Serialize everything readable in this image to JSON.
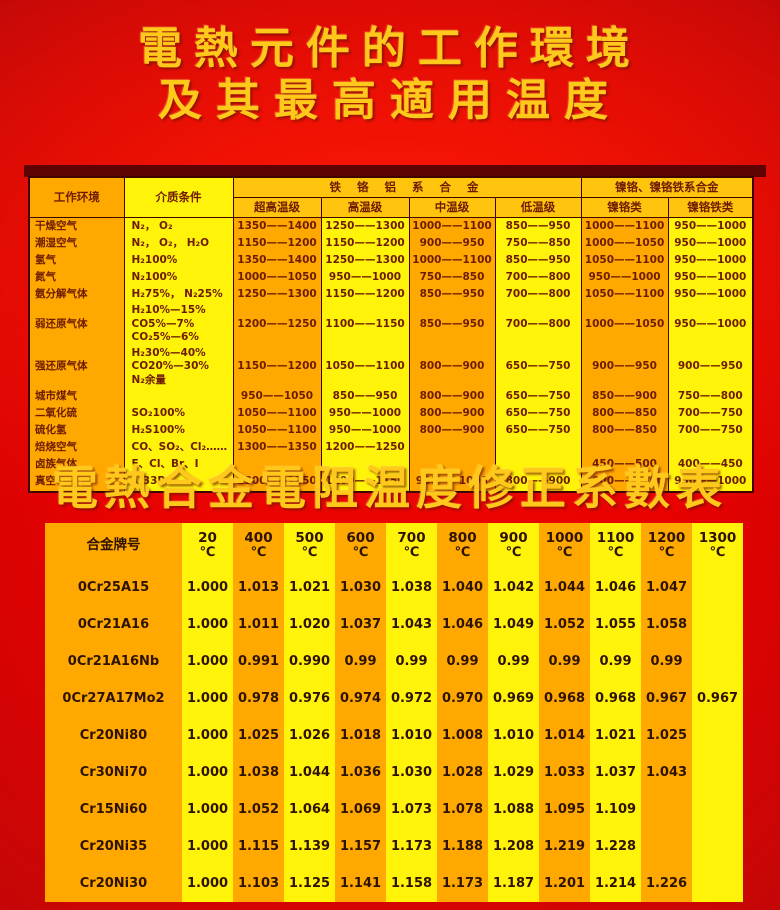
{
  "page": {
    "title_line1": "電熱元件的工作環境",
    "title_line2": "及其最高適用温度",
    "section2_title": "電熱合金電阻温度修正系數表"
  },
  "colors": {
    "background_red": "#e60000",
    "edge_maroon": "#650404",
    "title_gold": "#ffc91c",
    "cell_orange": "#ffa800",
    "cell_yellow": "#fff30a",
    "header_gold": "#ffc40d",
    "table1_text": "#6e1c00",
    "table2_text": "#2e1300",
    "border_dark": "#3f0300"
  },
  "table1": {
    "corner_headers": [
      "工作环境",
      "介质条件"
    ],
    "group_headers": [
      "铁 铬 铝 系 合 金",
      "镍铬、镍铬铁系合金"
    ],
    "sub_headers": [
      "超高温级",
      "高温级",
      "中温级",
      "低温级",
      "镍铬类",
      "镍铬铁类"
    ],
    "rows": [
      {
        "env": "干燥空气",
        "medium": "N₂， O₂",
        "values": [
          "1350——1400",
          "1250——1300",
          "1000——1100",
          "850——950",
          "1000——1100",
          "950——1000"
        ]
      },
      {
        "env": "潮湿空气",
        "medium": "N₂， O₂， H₂O",
        "values": [
          "1150——1200",
          "1150——1200",
          "900——950",
          "750——850",
          "1000——1050",
          "950——1000"
        ]
      },
      {
        "env": "氢气",
        "medium": "H₂100%",
        "values": [
          "1350——1400",
          "1250——1300",
          "1000——1100",
          "850——950",
          "1050——1100",
          "950——1000"
        ]
      },
      {
        "env": "氮气",
        "medium": "N₂100%",
        "values": [
          "1000——1050",
          "950——1000",
          "750——850",
          "700——800",
          "950——1000",
          "950——1000"
        ]
      },
      {
        "env": "氨分解气体",
        "medium": "H₂75%， N₂25%",
        "values": [
          "1250——1300",
          "1150——1200",
          "850——950",
          "700——800",
          "1050——1100",
          "950——1000"
        ]
      },
      {
        "env": "弱还原气体",
        "medium": "H₂10%—15%\nCO5%—7%\nCO₂5%—6%",
        "values": [
          "1200——1250",
          "1100——1150",
          "850——950",
          "700——800",
          "1000——1050",
          "950——1000"
        ]
      },
      {
        "env": "强还原气体",
        "medium": "H₂30%—40%\nCO20%—30%\nN₂余量",
        "values": [
          "1150——1200",
          "1050——1100",
          "800——900",
          "650——750",
          "900——950",
          "900——950"
        ]
      },
      {
        "env": "城市煤气",
        "medium": "",
        "values": [
          "950——1050",
          "850——950",
          "800——900",
          "650——750",
          "850——900",
          "750——800"
        ]
      },
      {
        "env": "二氧化硫",
        "medium": "SO₂100%",
        "values": [
          "1050——1100",
          "950——1000",
          "800——900",
          "650——750",
          "800——850",
          "700——750"
        ]
      },
      {
        "env": "硫化氢",
        "medium": "H₂S100%",
        "values": [
          "1050——1100",
          "950——1000",
          "800——900",
          "650——750",
          "800——850",
          "700——750"
        ]
      },
      {
        "env": "焙烧空气",
        "medium": "CO、SO₂、Cl₂……",
        "values": [
          "1300——1350",
          "1200——1250",
          "",
          "",
          "",
          ""
        ]
      },
      {
        "env": "卤族气体",
        "medium": "F、Cl、Br、I",
        "values": [
          "",
          "",
          "",
          "",
          "450——500",
          "400——450"
        ]
      },
      {
        "env": "真空",
        "medium": "1.33Pa",
        "values": [
          "1200——1250",
          "1100——1150",
          "900——1000",
          "800——900",
          "1000——1100",
          "950——1000"
        ]
      }
    ]
  },
  "table2": {
    "col0_header": "合金牌号",
    "temp_headers": [
      "20",
      "400",
      "500",
      "600",
      "700",
      "800",
      "900",
      "1000",
      "1100",
      "1200",
      "1300"
    ],
    "temp_unit": "℃",
    "rows": [
      {
        "name": "0Cr25A15",
        "values": [
          "1.000",
          "1.013",
          "1.021",
          "1.030",
          "1.038",
          "1.040",
          "1.042",
          "1.044",
          "1.046",
          "1.047",
          ""
        ]
      },
      {
        "name": "0Cr21A16",
        "values": [
          "1.000",
          "1.011",
          "1.020",
          "1.037",
          "1.043",
          "1.046",
          "1.049",
          "1.052",
          "1.055",
          "1.058",
          ""
        ]
      },
      {
        "name": "0Cr21A16Nb",
        "values": [
          "1.000",
          "0.991",
          "0.990",
          "0.99",
          "0.99",
          "0.99",
          "0.99",
          "0.99",
          "0.99",
          "0.99",
          ""
        ]
      },
      {
        "name": "0Cr27A17Mo2",
        "values": [
          "1.000",
          "0.978",
          "0.976",
          "0.974",
          "0.972",
          "0.970",
          "0.969",
          "0.968",
          "0.968",
          "0.967",
          "0.967"
        ]
      },
      {
        "name": "Cr20Ni80",
        "values": [
          "1.000",
          "1.025",
          "1.026",
          "1.018",
          "1.010",
          "1.008",
          "1.010",
          "1.014",
          "1.021",
          "1.025",
          ""
        ]
      },
      {
        "name": "Cr30Ni70",
        "values": [
          "1.000",
          "1.038",
          "1.044",
          "1.036",
          "1.030",
          "1.028",
          "1.029",
          "1.033",
          "1.037",
          "1.043",
          ""
        ]
      },
      {
        "name": "Cr15Ni60",
        "values": [
          "1.000",
          "1.052",
          "1.064",
          "1.069",
          "1.073",
          "1.078",
          "1.088",
          "1.095",
          "1.109",
          "",
          ""
        ]
      },
      {
        "name": "Cr20Ni35",
        "values": [
          "1.000",
          "1.115",
          "1.139",
          "1.157",
          "1.173",
          "1.188",
          "1.208",
          "1.219",
          "1.228",
          "",
          ""
        ]
      },
      {
        "name": "Cr20Ni30",
        "values": [
          "1.000",
          "1.103",
          "1.125",
          "1.141",
          "1.158",
          "1.173",
          "1.187",
          "1.201",
          "1.214",
          "1.226",
          ""
        ]
      }
    ]
  }
}
